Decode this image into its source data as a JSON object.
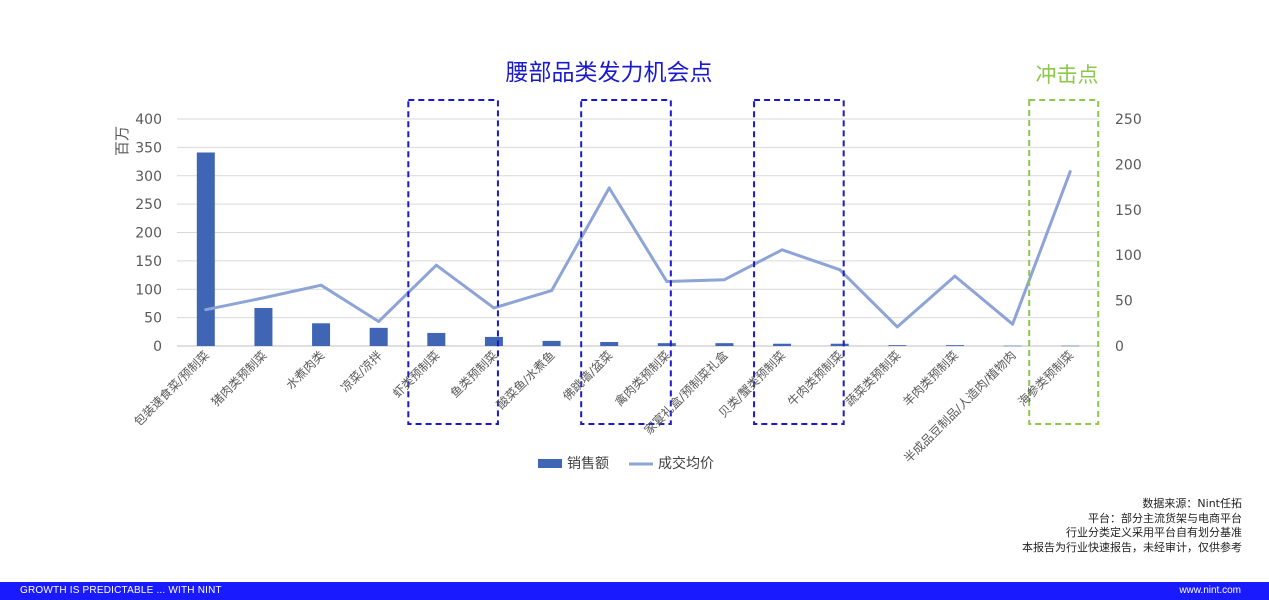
{
  "chart_data": {
    "type": "bar+line",
    "title": "腰部品类发力机会点",
    "callout": "冲击点",
    "y_left_label": "百万",
    "y_left_range": [
      0,
      400
    ],
    "y_left_ticks": [
      "0",
      "50",
      "100",
      "150",
      "200",
      "250",
      "300",
      "350",
      "400"
    ],
    "y_right_range": [
      0,
      250
    ],
    "y_right_ticks": [
      "0",
      "50",
      "100",
      "150",
      "200",
      "250"
    ],
    "categories": [
      "包装速食菜/预制菜",
      "猪肉类预制菜",
      "水煮肉类",
      "凉菜/凉拌",
      "虾类预制菜",
      "鱼类预制菜",
      "酸菜鱼/水煮鱼",
      "佛跳墙/盆菜",
      "禽肉类预制菜",
      "家宴礼盒/预制菜礼盒",
      "贝类/蟹类预制菜",
      "牛肉类预制菜",
      "蔬菜类预制菜",
      "羊肉类预制菜",
      "半成品豆制品/人造肉/植物肉",
      "海参类预制菜"
    ],
    "series": [
      {
        "name": "销售额",
        "type": "bar",
        "axis": "left",
        "color": "#3f65b4",
        "values": [
          341,
          67,
          40,
          32,
          23,
          16,
          9,
          7,
          5,
          5,
          4,
          4,
          1.5,
          1.5,
          0.5,
          0.5
        ]
      },
      {
        "name": "成交均价",
        "type": "line",
        "axis": "right",
        "color": "#8ea4d6",
        "values": [
          40,
          53,
          67,
          27,
          89,
          42,
          61,
          174,
          71,
          73,
          106,
          84,
          21,
          77,
          24,
          192
        ]
      }
    ],
    "highlight_groups": [
      {
        "categories": [
          "虾类预制菜",
          "鱼类预制菜"
        ],
        "color": "#1a1acc"
      },
      {
        "categories": [
          "佛跳墙/盆菜",
          "禽肉类预制菜"
        ],
        "color": "#1a1acc"
      },
      {
        "categories": [
          "贝类/蟹类预制菜",
          "牛肉类预制菜"
        ],
        "color": "#1a1acc"
      },
      {
        "categories": [
          "海参类预制菜"
        ],
        "color": "#8cc84b"
      }
    ],
    "legend_position": "bottom"
  },
  "source": {
    "line1": "数据来源：Nint任拓",
    "line2": "平台：部分主流货架与电商平台",
    "line3": "行业分类定义采用平台自有划分基准",
    "line4": "本报告为行业快速报告，未经审计，仅供参考"
  },
  "footer": {
    "left": "GROWTH IS PREDICTABLE ... WITH NINT",
    "right": "www.nint.com"
  }
}
